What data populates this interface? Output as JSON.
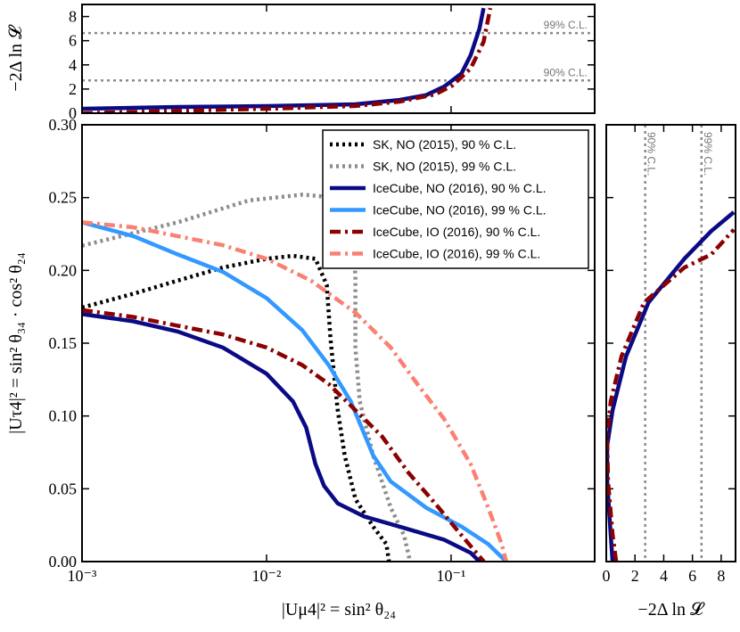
{
  "chart_data": [
    {
      "type": "line",
      "xscale": "log",
      "xlim": [
        0.001,
        0.6
      ],
      "ylim": [
        0,
        0.3
      ],
      "xticks": [
        {
          "value": 0.001,
          "label": "10⁻³"
        },
        {
          "value": 0.01,
          "label": "10⁻²"
        },
        {
          "value": 0.1,
          "label": "10⁻¹"
        }
      ],
      "yticks": [
        {
          "value": 0,
          "label": "0.00"
        },
        0.05,
        {
          "value": 0.1,
          "label": "0.10"
        },
        0.15,
        {
          "value": 0.2,
          "label": "0.20"
        },
        0.25,
        {
          "value": 0.3,
          "label": "0.30"
        }
      ],
      "xlabel": "|Uμ4|² = sin² θ₂₄",
      "ylabel": "|Uτ4|² = sin² θ₃₄ · cos² θ₂₄",
      "legend": "upper right",
      "series": [
        {
          "name": "SK, NO (2015), 90 % C.L.",
          "color": "#000000",
          "style": "dotted",
          "x": [
            0.001,
            0.0019,
            0.0033,
            0.0058,
            0.01,
            0.0139,
            0.0184,
            0.0212,
            0.0222,
            0.0232,
            0.0243,
            0.0265,
            0.0303,
            0.0378,
            0.0446,
            0.0461
          ],
          "values": [
            0.1745,
            0.184,
            0.193,
            0.202,
            0.208,
            0.21,
            0.208,
            0.19,
            0.153,
            0.129,
            0.104,
            0.073,
            0.043,
            0.024,
            0.012,
            0
          ]
        },
        {
          "name": "SK, NO (2015), 99 % C.L.",
          "color": "#8c8c8c",
          "style": "dotted",
          "x": [
            0.001,
            0.0033,
            0.008,
            0.0156,
            0.0194,
            0.0286,
            0.0303,
            0.0303,
            0.032,
            0.0378,
            0.0471,
            0.0556,
            0.06
          ],
          "values": [
            0.217,
            0.233,
            0.248,
            0.252,
            0.251,
            0.239,
            0.196,
            0.147,
            0.11,
            0.073,
            0.037,
            0.018,
            0
          ]
        },
        {
          "name": "IceCube, NO (2016), 90 % C.L.",
          "color": "#0a0a85",
          "style": "solid",
          "x": [
            0.001,
            0.0019,
            0.0033,
            0.0058,
            0.01,
            0.0139,
            0.0164,
            0.0184,
            0.0205,
            0.0243,
            0.0338,
            0.0526,
            0.0916,
            0.1276,
            0.1425
          ],
          "values": [
            0.17,
            0.165,
            0.158,
            0.147,
            0.129,
            0.11,
            0.092,
            0.067,
            0.052,
            0.04,
            0.031,
            0.024,
            0.015,
            0.006,
            0
          ]
        },
        {
          "name": "IceCube, NO (2016), 99 % C.L.",
          "color": "#3399ff",
          "style": "solid",
          "x": [
            0.001,
            0.0019,
            0.0033,
            0.0058,
            0.01,
            0.0156,
            0.0217,
            0.0286,
            0.0378,
            0.0471,
            0.0733,
            0.114,
            0.159,
            0.199
          ],
          "values": [
            0.233,
            0.2235,
            0.211,
            0.199,
            0.181,
            0.159,
            0.135,
            0.11,
            0.073,
            0.055,
            0.037,
            0.024,
            0.012,
            0
          ]
        },
        {
          "name": "IceCube, IO (2016), 90 % C.L.",
          "color": "#8b0000",
          "style": "dashdot",
          "x": [
            0.001,
            0.0019,
            0.0033,
            0.0058,
            0.01,
            0.0156,
            0.0217,
            0.0303,
            0.0422,
            0.0588,
            0.0819,
            0.114,
            0.1506
          ],
          "values": [
            0.1727,
            0.168,
            0.162,
            0.156,
            0.147,
            0.135,
            0.122,
            0.104,
            0.086,
            0.061,
            0.04,
            0.018,
            0
          ]
        },
        {
          "name": "IceCube, IO (2016), 99 % C.L.",
          "color": "#fa8072",
          "style": "dashdot",
          "x": [
            0.001,
            0.0019,
            0.0033,
            0.0058,
            0.01,
            0.0174,
            0.0303,
            0.0471,
            0.0656,
            0.0916,
            0.1276,
            0.159,
            0.188,
            0.199
          ],
          "values": [
            0.233,
            0.2296,
            0.2235,
            0.2173,
            0.208,
            0.193,
            0.171,
            0.147,
            0.122,
            0.098,
            0.067,
            0.037,
            0.012,
            0
          ]
        }
      ]
    },
    {
      "type": "line",
      "xscale": "log",
      "xlim": [
        0.001,
        0.6
      ],
      "ylim": [
        0,
        9
      ],
      "xticks": [
        0.001,
        0.01,
        0.1
      ],
      "xtick_labels": false,
      "yticks": [
        0,
        2,
        4,
        6,
        8
      ],
      "ylabel": "−2Δ ln 𝓛",
      "cl_axis": "y",
      "cl_lines": [
        {
          "value": 2.71,
          "label": "90% C.L."
        },
        {
          "value": 6.63,
          "label": "99% C.L."
        }
      ],
      "series": [
        {
          "color": "#0a0a85",
          "style": "solid",
          "x": [
            0.001,
            0.0033,
            0.01,
            0.0303,
            0.0526,
            0.0733,
            0.0916,
            0.114,
            0.1276,
            0.1425,
            0.15
          ],
          "values": [
            0.37,
            0.52,
            0.59,
            0.74,
            1.1,
            1.5,
            2.2,
            3.3,
            4.8,
            7.0,
            8.7
          ]
        },
        {
          "color": "#8b0000",
          "style": "dashdot",
          "x": [
            0.001,
            0.0033,
            0.01,
            0.0303,
            0.0526,
            0.0819,
            0.102,
            0.1276,
            0.15,
            0.163
          ],
          "values": [
            0,
            0.2,
            0.37,
            0.6,
            0.96,
            1.56,
            2.3,
            3.7,
            5.9,
            8.7
          ]
        }
      ]
    },
    {
      "type": "line",
      "orientation": "vertical",
      "xlim": [
        0,
        9
      ],
      "ylim": [
        0,
        0.3
      ],
      "xticks": [
        0,
        2,
        4,
        6,
        8
      ],
      "yticks": [
        0,
        0.05,
        0.1,
        0.15,
        0.2,
        0.25,
        0.3
      ],
      "ytick_labels": false,
      "xlabel": "−2Δ ln 𝓛",
      "cl_axis": "x",
      "cl_lines": [
        {
          "value": 2.71,
          "label": "90% C.L."
        },
        {
          "value": 6.63,
          "label": "99% C.L."
        }
      ],
      "series": [
        {
          "color": "#0a0a85",
          "style": "solid",
          "x": [
            0.44,
            0.31,
            0.06,
            0.06,
            0.44,
            1.38,
            2.94,
            5.44,
            7.31,
            8.88
          ],
          "values": [
            0,
            0.0184,
            0.0551,
            0.0796,
            0.104,
            0.141,
            0.178,
            0.208,
            0.227,
            0.24
          ]
        },
        {
          "color": "#8b0000",
          "style": "dashdot",
          "x": [
            0.69,
            0.44,
            0.125,
            0.06,
            0.31,
            1.06,
            2.63,
            5.44,
            7.31,
            8.88
          ],
          "values": [
            0,
            0.0184,
            0.0551,
            0.0857,
            0.11,
            0.141,
            0.178,
            0.202,
            0.211,
            0.228
          ]
        }
      ]
    }
  ]
}
